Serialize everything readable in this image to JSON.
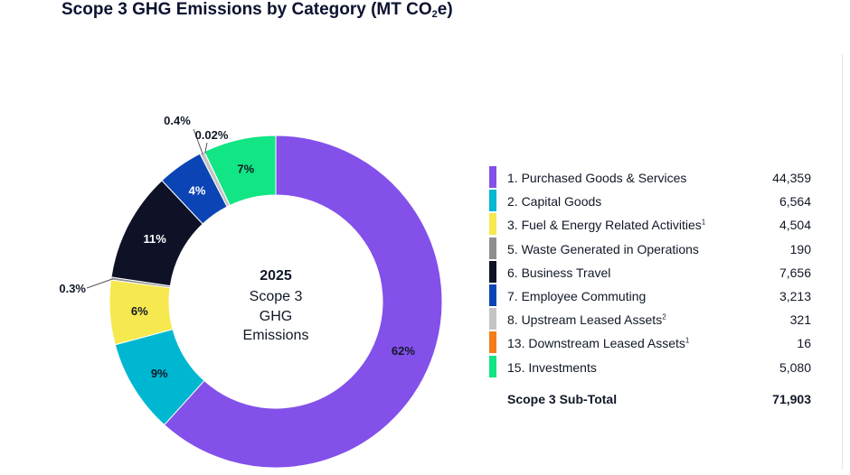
{
  "title_main": "Scope 3 GHG Emissions by Category (MT CO",
  "title_sub": "2",
  "title_end": "e)",
  "center": {
    "year": "2025",
    "line1": "Scope 3",
    "line2": "GHG",
    "line3": "Emissions"
  },
  "chart_data": {
    "type": "pie",
    "title": "Scope 3 GHG Emissions by Category (MT CO2e)",
    "total_label": "Scope 3 Sub-Total",
    "total": "71,903",
    "slices": [
      {
        "name": "1. Purchased Goods & Services",
        "sup": "",
        "value": 44359,
        "display": "44,359",
        "pct_label": "62%",
        "color": "#8350ea"
      },
      {
        "name": "2. Capital Goods",
        "sup": "",
        "value": 6564,
        "display": "6,564",
        "pct_label": "9%",
        "color": "#00b7d1"
      },
      {
        "name": "3. Fuel & Energy Related Activities",
        "sup": "1",
        "value": 4504,
        "display": "4,504",
        "pct_label": "6%",
        "color": "#f6e84f"
      },
      {
        "name": "5. Waste Generated in Operations",
        "sup": "",
        "value": 190,
        "display": "190",
        "pct_label": "0.3%",
        "color": "#8e8e8e"
      },
      {
        "name": "6. Business Travel",
        "sup": "",
        "value": 7656,
        "display": "7,656",
        "pct_label": "11%",
        "color": "#0f1227"
      },
      {
        "name": "7. Employee Commuting",
        "sup": "",
        "value": 3213,
        "display": "3,213",
        "pct_label": "4%",
        "color": "#0b45b5"
      },
      {
        "name": "8. Upstream Leased Assets",
        "sup": "2",
        "value": 321,
        "display": "321",
        "pct_label": "0.4%",
        "color": "#c4c4c4"
      },
      {
        "name": "13. Downstream Leased Assets",
        "sup": "1",
        "value": 16,
        "display": "16",
        "pct_label": "0.02%",
        "color": "#f47d1b"
      },
      {
        "name": "15. Investments",
        "sup": "",
        "value": 5080,
        "display": "5,080",
        "pct_label": "7%",
        "color": "#12e583"
      }
    ]
  }
}
